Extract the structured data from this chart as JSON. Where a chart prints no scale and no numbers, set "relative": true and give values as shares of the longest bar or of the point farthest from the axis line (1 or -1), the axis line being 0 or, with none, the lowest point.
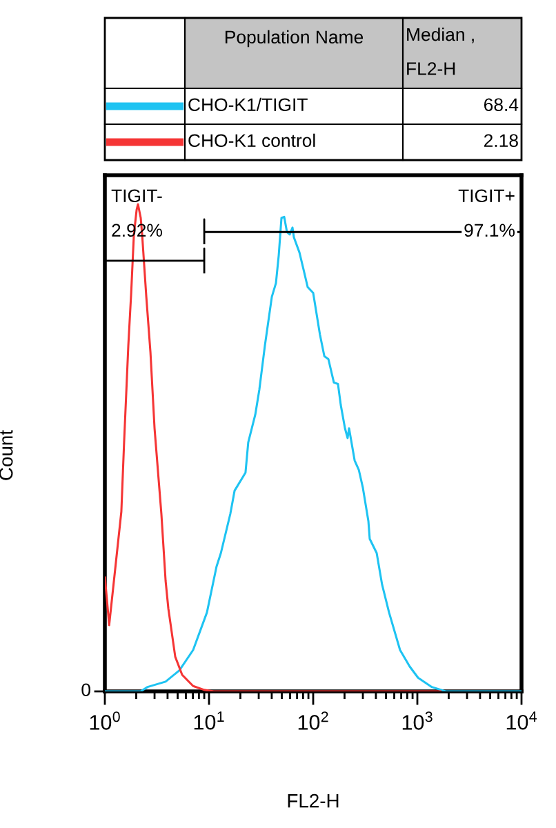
{
  "chart_data": {
    "type": "line",
    "xlabel": "FL2-H",
    "ylabel": "Count",
    "legend_title": "Population Name",
    "legend": "top",
    "log": "x",
    "relative": true,
    "xlim": [
      1,
      10000
    ],
    "xticks": [
      {
        "value": 1,
        "label": "10$^{0}$"
      },
      {
        "value": 10,
        "label": "10$^{1}$"
      },
      {
        "value": 100,
        "label": "10$^{2}$"
      },
      {
        "value": 1000,
        "label": "10$^{3}$"
      },
      {
        "value": 10000,
        "label": "10$^{4}$"
      }
    ],
    "series": [
      {
        "name": "CHO-K1/TIGIT",
        "color": "#1ec3f2",
        "x": [
          1,
          2.21,
          2.57,
          3.83,
          5.19,
          7.04,
          9.55,
          11.8,
          13.0,
          16.0,
          17.6,
          22.4,
          23.8,
          27.8,
          30.4,
          34.4,
          40.1,
          43.9,
          46.7,
          49.6,
          52.7,
          56.0,
          59.6,
          63.3,
          65.3,
          73.8,
          80.8,
          88.5,
          100,
          116,
          128,
          140,
          158,
          173,
          184,
          202,
          214,
          221,
          250,
          274,
          300,
          339,
          349,
          407,
          459,
          535,
          682,
          845,
          1016,
          1377,
          1870,
          10000
        ],
        "values": [
          0,
          0,
          0.009,
          0.02,
          0.043,
          0.085,
          0.162,
          0.256,
          0.284,
          0.364,
          0.412,
          0.449,
          0.511,
          0.568,
          0.619,
          0.71,
          0.81,
          0.838,
          0.895,
          0.972,
          0.974,
          0.943,
          0.938,
          0.952,
          0.932,
          0.901,
          0.866,
          0.83,
          0.818,
          0.733,
          0.688,
          0.682,
          0.634,
          0.631,
          0.588,
          0.54,
          0.52,
          0.54,
          0.474,
          0.455,
          0.418,
          0.349,
          0.313,
          0.284,
          0.219,
          0.162,
          0.085,
          0.051,
          0.028,
          0.009,
          0,
          0
        ]
      },
      {
        "name": "CHO-K1 control",
        "color": "#f53535",
        "x": [
          1,
          1.1,
          1.28,
          1.44,
          1.53,
          1.68,
          1.79,
          1.9,
          2.02,
          2.08,
          2.21,
          2.28,
          2.5,
          2.74,
          3.0,
          3.49,
          3.83,
          4.07,
          4.74,
          5.52,
          7.04,
          8.99,
          11.1,
          1706
        ],
        "values": [
          0.236,
          0.136,
          0.267,
          0.369,
          0.511,
          0.71,
          0.818,
          0.938,
          0.989,
          1,
          0.972,
          0.938,
          0.81,
          0.696,
          0.54,
          0.364,
          0.227,
          0.17,
          0.071,
          0.034,
          0.011,
          0.003,
          0,
          0
        ]
      },
      {
        "color": "#000000",
        "x": [
          1,
          9,
          9,
          9
        ],
        "values": [
          0.884,
          0.884,
          0.909,
          0.858
        ]
      },
      {
        "color": "#000000",
        "x": [
          9,
          9,
          9,
          10000
        ],
        "values": [
          0.918,
          0.969,
          0.943,
          0.943
        ]
      }
    ],
    "annotations": [
      "Median , FL2-H",
      "68.4",
      "2.18",
      "TIGIT-",
      "2.92%",
      "TIGIT+",
      "97.1%",
      "0"
    ]
  }
}
